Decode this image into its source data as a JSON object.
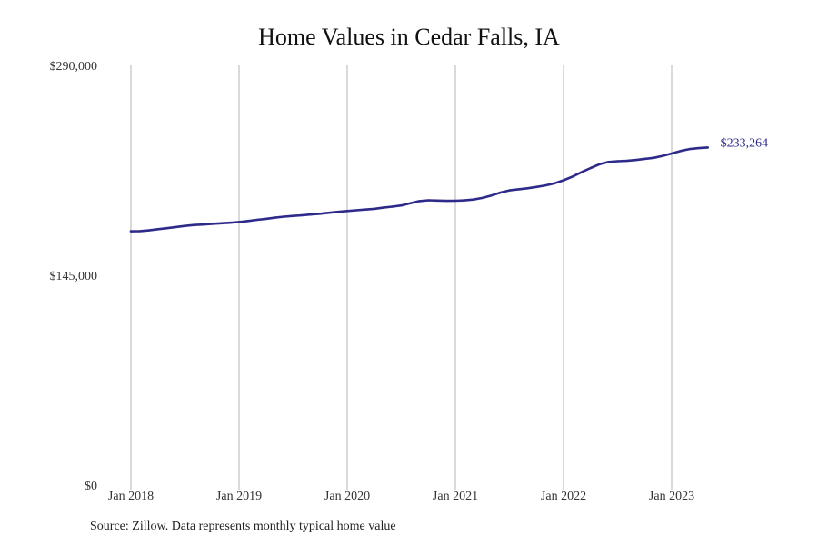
{
  "colors": {
    "line": "#2e2a8a",
    "grid": "#b5b5b5",
    "text": "#333333"
  },
  "chart_data": {
    "type": "line",
    "title": "Home Values in Cedar Falls, IA",
    "xlabel": "",
    "ylabel": "",
    "ylim": [
      0,
      290000
    ],
    "yticks": [
      0,
      145000,
      290000
    ],
    "ytick_labels": [
      "$0",
      "$145,000",
      "$290,000"
    ],
    "xticks": [
      "2018-01",
      "2019-01",
      "2020-01",
      "2021-01",
      "2022-01",
      "2023-01"
    ],
    "xtick_labels": [
      "Jan 2018",
      "Jan 2019",
      "Jan 2020",
      "Jan 2021",
      "Jan 2022",
      "Jan 2023"
    ],
    "grid": {
      "vertical": true,
      "horizontal": false
    },
    "end_label": "$233,264",
    "series": [
      {
        "x": [
          "2018-01",
          "2018-02",
          "2018-03",
          "2018-04",
          "2018-05",
          "2018-06",
          "2018-07",
          "2018-08",
          "2018-09",
          "2018-10",
          "2018-11",
          "2018-12",
          "2019-01",
          "2019-02",
          "2019-03",
          "2019-04",
          "2019-05",
          "2019-06",
          "2019-07",
          "2019-08",
          "2019-09",
          "2019-10",
          "2019-11",
          "2019-12",
          "2020-01",
          "2020-02",
          "2020-03",
          "2020-04",
          "2020-05",
          "2020-06",
          "2020-07",
          "2020-08",
          "2020-09",
          "2020-10",
          "2020-11",
          "2020-12",
          "2021-01",
          "2021-02",
          "2021-03",
          "2021-04",
          "2021-05",
          "2021-06",
          "2021-07",
          "2021-08",
          "2021-09",
          "2021-10",
          "2021-11",
          "2021-12",
          "2022-01",
          "2022-02",
          "2022-03",
          "2022-04",
          "2022-05",
          "2022-06",
          "2022-07",
          "2022-08",
          "2022-09",
          "2022-10",
          "2022-11",
          "2022-12",
          "2023-01",
          "2023-02",
          "2023-03",
          "2023-04",
          "2023-05"
        ],
        "values": [
          175400,
          175500,
          176000,
          176800,
          177500,
          178300,
          179100,
          179700,
          180000,
          180500,
          180900,
          181300,
          181800,
          182500,
          183300,
          184000,
          184800,
          185500,
          186000,
          186400,
          187000,
          187500,
          188200,
          188800,
          189400,
          189900,
          190400,
          190900,
          191700,
          192400,
          193200,
          194800,
          196200,
          196800,
          196600,
          196400,
          196500,
          196700,
          197300,
          198400,
          200100,
          202100,
          203600,
          204400,
          205100,
          206000,
          207100,
          208500,
          210600,
          213200,
          216200,
          219100,
          221700,
          223300,
          223800,
          224000,
          224600,
          225400,
          226100,
          227500,
          229100,
          230900,
          232200,
          232800,
          233264
        ]
      }
    ]
  },
  "footer": {
    "source": "Source: Zillow. Data represents monthly typical home value"
  }
}
